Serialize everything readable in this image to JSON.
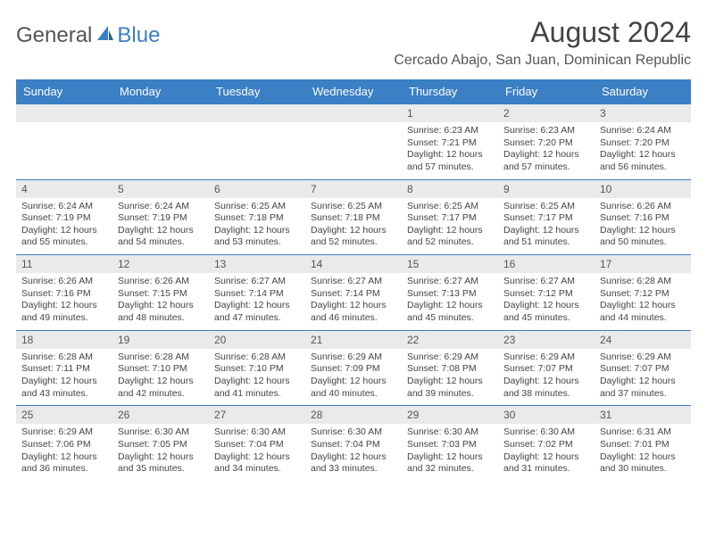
{
  "logo": {
    "general": "General",
    "blue": "Blue"
  },
  "title": "August 2024",
  "location": "Cercado Abajo, San Juan, Dominican Republic",
  "header_bg": "#3b7fc4",
  "day_bar_bg": "#eaeaea",
  "days_of_week": [
    "Sunday",
    "Monday",
    "Tuesday",
    "Wednesday",
    "Thursday",
    "Friday",
    "Saturday"
  ],
  "weeks": [
    [
      null,
      null,
      null,
      null,
      {
        "n": "1",
        "sr": "Sunrise: 6:23 AM",
        "ss": "Sunset: 7:21 PM",
        "d1": "Daylight: 12 hours",
        "d2": "and 57 minutes."
      },
      {
        "n": "2",
        "sr": "Sunrise: 6:23 AM",
        "ss": "Sunset: 7:20 PM",
        "d1": "Daylight: 12 hours",
        "d2": "and 57 minutes."
      },
      {
        "n": "3",
        "sr": "Sunrise: 6:24 AM",
        "ss": "Sunset: 7:20 PM",
        "d1": "Daylight: 12 hours",
        "d2": "and 56 minutes."
      }
    ],
    [
      {
        "n": "4",
        "sr": "Sunrise: 6:24 AM",
        "ss": "Sunset: 7:19 PM",
        "d1": "Daylight: 12 hours",
        "d2": "and 55 minutes."
      },
      {
        "n": "5",
        "sr": "Sunrise: 6:24 AM",
        "ss": "Sunset: 7:19 PM",
        "d1": "Daylight: 12 hours",
        "d2": "and 54 minutes."
      },
      {
        "n": "6",
        "sr": "Sunrise: 6:25 AM",
        "ss": "Sunset: 7:18 PM",
        "d1": "Daylight: 12 hours",
        "d2": "and 53 minutes."
      },
      {
        "n": "7",
        "sr": "Sunrise: 6:25 AM",
        "ss": "Sunset: 7:18 PM",
        "d1": "Daylight: 12 hours",
        "d2": "and 52 minutes."
      },
      {
        "n": "8",
        "sr": "Sunrise: 6:25 AM",
        "ss": "Sunset: 7:17 PM",
        "d1": "Daylight: 12 hours",
        "d2": "and 52 minutes."
      },
      {
        "n": "9",
        "sr": "Sunrise: 6:25 AM",
        "ss": "Sunset: 7:17 PM",
        "d1": "Daylight: 12 hours",
        "d2": "and 51 minutes."
      },
      {
        "n": "10",
        "sr": "Sunrise: 6:26 AM",
        "ss": "Sunset: 7:16 PM",
        "d1": "Daylight: 12 hours",
        "d2": "and 50 minutes."
      }
    ],
    [
      {
        "n": "11",
        "sr": "Sunrise: 6:26 AM",
        "ss": "Sunset: 7:16 PM",
        "d1": "Daylight: 12 hours",
        "d2": "and 49 minutes."
      },
      {
        "n": "12",
        "sr": "Sunrise: 6:26 AM",
        "ss": "Sunset: 7:15 PM",
        "d1": "Daylight: 12 hours",
        "d2": "and 48 minutes."
      },
      {
        "n": "13",
        "sr": "Sunrise: 6:27 AM",
        "ss": "Sunset: 7:14 PM",
        "d1": "Daylight: 12 hours",
        "d2": "and 47 minutes."
      },
      {
        "n": "14",
        "sr": "Sunrise: 6:27 AM",
        "ss": "Sunset: 7:14 PM",
        "d1": "Daylight: 12 hours",
        "d2": "and 46 minutes."
      },
      {
        "n": "15",
        "sr": "Sunrise: 6:27 AM",
        "ss": "Sunset: 7:13 PM",
        "d1": "Daylight: 12 hours",
        "d2": "and 45 minutes."
      },
      {
        "n": "16",
        "sr": "Sunrise: 6:27 AM",
        "ss": "Sunset: 7:12 PM",
        "d1": "Daylight: 12 hours",
        "d2": "and 45 minutes."
      },
      {
        "n": "17",
        "sr": "Sunrise: 6:28 AM",
        "ss": "Sunset: 7:12 PM",
        "d1": "Daylight: 12 hours",
        "d2": "and 44 minutes."
      }
    ],
    [
      {
        "n": "18",
        "sr": "Sunrise: 6:28 AM",
        "ss": "Sunset: 7:11 PM",
        "d1": "Daylight: 12 hours",
        "d2": "and 43 minutes."
      },
      {
        "n": "19",
        "sr": "Sunrise: 6:28 AM",
        "ss": "Sunset: 7:10 PM",
        "d1": "Daylight: 12 hours",
        "d2": "and 42 minutes."
      },
      {
        "n": "20",
        "sr": "Sunrise: 6:28 AM",
        "ss": "Sunset: 7:10 PM",
        "d1": "Daylight: 12 hours",
        "d2": "and 41 minutes."
      },
      {
        "n": "21",
        "sr": "Sunrise: 6:29 AM",
        "ss": "Sunset: 7:09 PM",
        "d1": "Daylight: 12 hours",
        "d2": "and 40 minutes."
      },
      {
        "n": "22",
        "sr": "Sunrise: 6:29 AM",
        "ss": "Sunset: 7:08 PM",
        "d1": "Daylight: 12 hours",
        "d2": "and 39 minutes."
      },
      {
        "n": "23",
        "sr": "Sunrise: 6:29 AM",
        "ss": "Sunset: 7:07 PM",
        "d1": "Daylight: 12 hours",
        "d2": "and 38 minutes."
      },
      {
        "n": "24",
        "sr": "Sunrise: 6:29 AM",
        "ss": "Sunset: 7:07 PM",
        "d1": "Daylight: 12 hours",
        "d2": "and 37 minutes."
      }
    ],
    [
      {
        "n": "25",
        "sr": "Sunrise: 6:29 AM",
        "ss": "Sunset: 7:06 PM",
        "d1": "Daylight: 12 hours",
        "d2": "and 36 minutes."
      },
      {
        "n": "26",
        "sr": "Sunrise: 6:30 AM",
        "ss": "Sunset: 7:05 PM",
        "d1": "Daylight: 12 hours",
        "d2": "and 35 minutes."
      },
      {
        "n": "27",
        "sr": "Sunrise: 6:30 AM",
        "ss": "Sunset: 7:04 PM",
        "d1": "Daylight: 12 hours",
        "d2": "and 34 minutes."
      },
      {
        "n": "28",
        "sr": "Sunrise: 6:30 AM",
        "ss": "Sunset: 7:04 PM",
        "d1": "Daylight: 12 hours",
        "d2": "and 33 minutes."
      },
      {
        "n": "29",
        "sr": "Sunrise: 6:30 AM",
        "ss": "Sunset: 7:03 PM",
        "d1": "Daylight: 12 hours",
        "d2": "and 32 minutes."
      },
      {
        "n": "30",
        "sr": "Sunrise: 6:30 AM",
        "ss": "Sunset: 7:02 PM",
        "d1": "Daylight: 12 hours",
        "d2": "and 31 minutes."
      },
      {
        "n": "31",
        "sr": "Sunrise: 6:31 AM",
        "ss": "Sunset: 7:01 PM",
        "d1": "Daylight: 12 hours",
        "d2": "and 30 minutes."
      }
    ]
  ]
}
